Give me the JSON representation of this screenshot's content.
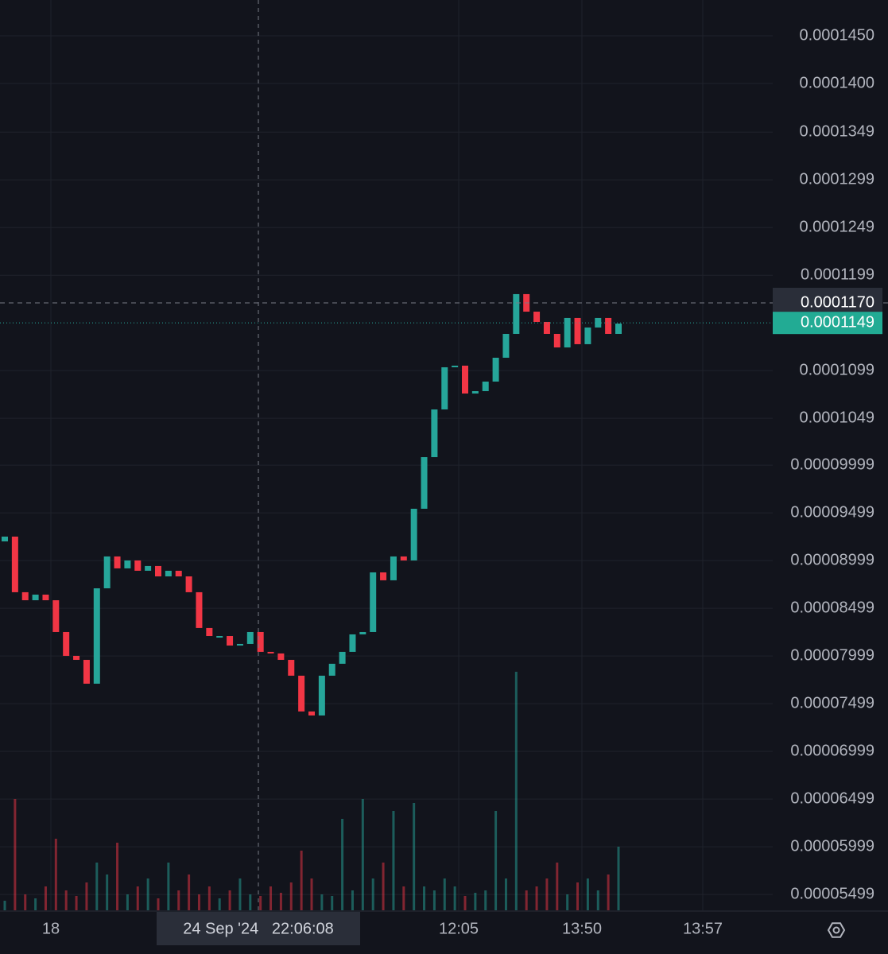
{
  "chart_data": {
    "type": "candlestick",
    "ylim": [
      5.333e-05,
      0.00014875
    ],
    "yticks": [
      {
        "value": 0.000145,
        "label": "0.0001450"
      },
      {
        "value": 0.00014,
        "label": "0.0001400"
      },
      {
        "value": 0.0001349,
        "label": "0.0001349"
      },
      {
        "value": 0.0001299,
        "label": "0.0001299"
      },
      {
        "value": 0.0001249,
        "label": "0.0001249"
      },
      {
        "value": 0.0001199,
        "label": "0.0001199"
      },
      {
        "value": 0.0001099,
        "label": "0.0001099"
      },
      {
        "value": 0.0001049,
        "label": "0.0001049"
      },
      {
        "value": 9.999e-05,
        "label": "0.00009999"
      },
      {
        "value": 9.499e-05,
        "label": "0.00009499"
      },
      {
        "value": 8.999e-05,
        "label": "0.00008999"
      },
      {
        "value": 8.499e-05,
        "label": "0.00008499"
      },
      {
        "value": 7.999e-05,
        "label": "0.00007999"
      },
      {
        "value": 7.499e-05,
        "label": "0.00007499"
      },
      {
        "value": 6.999e-05,
        "label": "0.00006999"
      },
      {
        "value": 6.499e-05,
        "label": "0.00006499"
      },
      {
        "value": 5.999e-05,
        "label": "0.00005999"
      },
      {
        "value": 5.499e-05,
        "label": "0.00005499"
      }
    ],
    "xtick_labels": [
      "18",
      "12:05",
      "13:50",
      "13:57"
    ],
    "up_color": "#26a69a",
    "down_color": "#f23645",
    "open": [
      9.2e-05,
      9.25e-05,
      8.667e-05,
      8.583e-05,
      8.642e-05,
      8.583e-05,
      8.25e-05,
      8e-05,
      7.958e-05,
      7.708e-05,
      8.708e-05,
      9.042e-05,
      8.917e-05,
      9e-05,
      8.892e-05,
      8.942e-05,
      8.833e-05,
      8.892e-05,
      8.833e-05,
      8.667e-05,
      8.292e-05,
      8.208e-05,
      8.208e-05,
      8.108e-05,
      8.125e-05,
      8.25e-05,
      8.042e-05,
      8.025e-05,
      7.958e-05,
      7.792e-05,
      7.417e-05,
      7.375e-05,
      7.792e-05,
      7.917e-05,
      8.042e-05,
      8.225e-05,
      8.25e-05,
      8.875e-05,
      8.792e-05,
      9.042e-05,
      9e-05,
      9.542e-05,
      0.00010083,
      0.00010583,
      0.00011025,
      0.00011042,
      0.0001075,
      0.00010775,
      0.00010875,
      0.00011125,
      0.00011375,
      0.00011792,
      0.00011608,
      0.000115,
      0.00011375,
      0.00011233,
      0.00011542,
      0.00011267,
      0.00011442,
      0.00011542,
      0.00011375
    ],
    "close": [
      9.25e-05,
      8.667e-05,
      8.583e-05,
      8.642e-05,
      8.583e-05,
      8.25e-05,
      8e-05,
      7.958e-05,
      7.708e-05,
      8.708e-05,
      9.042e-05,
      8.917e-05,
      9e-05,
      8.892e-05,
      8.942e-05,
      8.833e-05,
      8.892e-05,
      8.833e-05,
      8.667e-05,
      8.292e-05,
      8.208e-05,
      8.208e-05,
      8.108e-05,
      8.125e-05,
      8.25e-05,
      8.042e-05,
      8.025e-05,
      7.958e-05,
      7.792e-05,
      7.417e-05,
      7.375e-05,
      7.792e-05,
      7.917e-05,
      8.042e-05,
      8.225e-05,
      8.25e-05,
      8.875e-05,
      8.792e-05,
      9.042e-05,
      9e-05,
      9.542e-05,
      0.00010083,
      0.00010583,
      0.00011025,
      0.00011042,
      0.0001075,
      0.00010775,
      0.00010875,
      0.00011125,
      0.00011375,
      0.00011792,
      0.00011608,
      0.000115,
      0.00011375,
      0.00011233,
      0.00011542,
      0.00011267,
      0.00011442,
      0.00011542,
      0.00011375,
      0.00011483
    ],
    "volume": [
      12,
      140,
      20,
      15,
      30,
      90,
      25,
      18,
      35,
      60,
      45,
      85,
      20,
      30,
      40,
      15,
      60,
      25,
      45,
      20,
      30,
      15,
      25,
      40,
      20,
      18,
      30,
      22,
      35,
      75,
      40,
      20,
      18,
      115,
      25,
      140,
      40,
      60,
      125,
      30,
      135,
      30,
      25,
      40,
      30,
      18,
      22,
      25,
      125,
      40,
      300,
      25,
      30,
      40,
      60,
      20,
      35,
      40,
      25,
      45,
      80
    ],
    "crosshair": {
      "price": {
        "value": 0.000117,
        "label": "0.0001170"
      },
      "time": "24 Sep '24   22:06:08"
    },
    "last_price": {
      "value": 0.0001149,
      "label": "0.0001149"
    }
  }
}
